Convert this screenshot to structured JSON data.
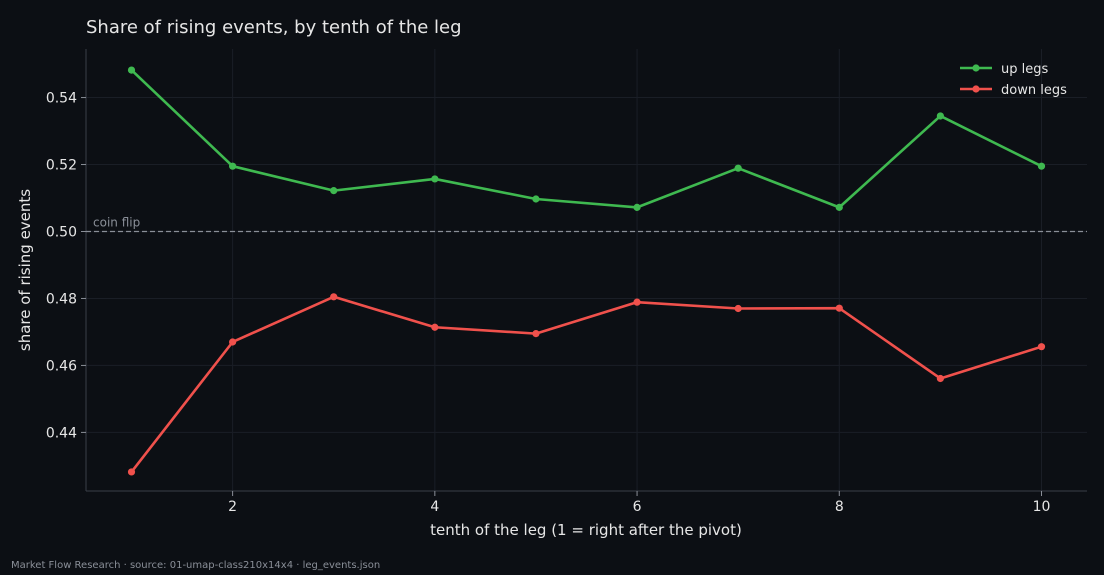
{
  "chart_data": {
    "type": "line",
    "title": "Share of rising events, by tenth of the leg",
    "xlabel": "tenth of the leg (1 = right after the pivot)",
    "ylabel": "share of rising events",
    "xlim": [
      0.55,
      10.45
    ],
    "ylim": [
      0.4225,
      0.5545
    ],
    "xticks": [
      2,
      4,
      6,
      8,
      10
    ],
    "yticks": [
      0.44,
      0.46,
      0.48,
      0.5,
      0.52,
      0.54
    ],
    "x": [
      1,
      2,
      3,
      4,
      5,
      6,
      7,
      8,
      9,
      10
    ],
    "series": [
      {
        "name": "up legs",
        "color": "#3fb950",
        "values": [
          0.5482,
          0.5195,
          0.5122,
          0.5157,
          0.5097,
          0.5072,
          0.5189,
          0.5072,
          0.5345,
          0.5195
        ]
      },
      {
        "name": "down legs",
        "color": "#f0514c",
        "values": [
          0.4282,
          0.467,
          0.4805,
          0.4714,
          0.4695,
          0.4789,
          0.477,
          0.4771,
          0.4561,
          0.4656
        ]
      }
    ],
    "reference_line": {
      "y": 0.5,
      "label": "coin flip",
      "color": "#8a8f98"
    },
    "legend": "top-right",
    "grid": true
  },
  "footer": "Market Flow Research · source: 01-umap-class210x14x4 · leg_events.json"
}
